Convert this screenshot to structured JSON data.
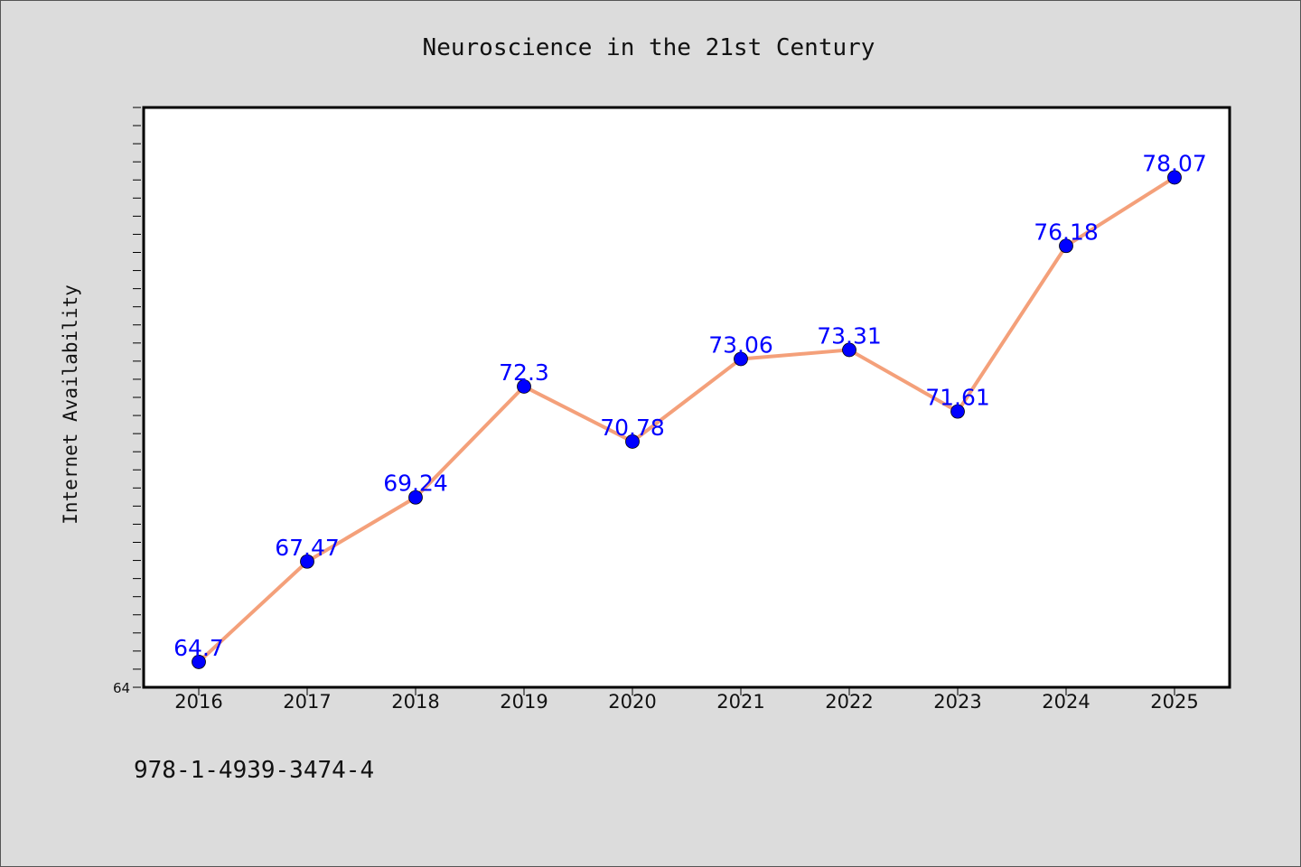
{
  "chart_data": {
    "type": "line",
    "title": "Neuroscience in the 21st Century",
    "xlabel": "",
    "ylabel": "Internet Availability",
    "categories": [
      "2016",
      "2017",
      "2018",
      "2019",
      "2020",
      "2021",
      "2022",
      "2023",
      "2024",
      "2025"
    ],
    "series": [
      {
        "values": [
          64.7,
          67.47,
          69.24,
          72.3,
          70.78,
          73.06,
          73.31,
          71.61,
          76.18,
          78.07
        ],
        "labels": [
          "64.7",
          "67.47",
          "69.24",
          "72.3",
          "70.78",
          "73.06",
          "73.31",
          "71.61",
          "76.18",
          "78.07"
        ],
        "line_color": "#f4a07a",
        "marker_color": "#0000ff"
      }
    ],
    "ylim": [
      64,
      80
    ],
    "y_tick_labels": [
      "64"
    ],
    "grid": false,
    "background": "#dcdcdc",
    "plot_background": "#ffffff"
  },
  "footer": {
    "isbn": "978-1-4939-3474-4"
  }
}
